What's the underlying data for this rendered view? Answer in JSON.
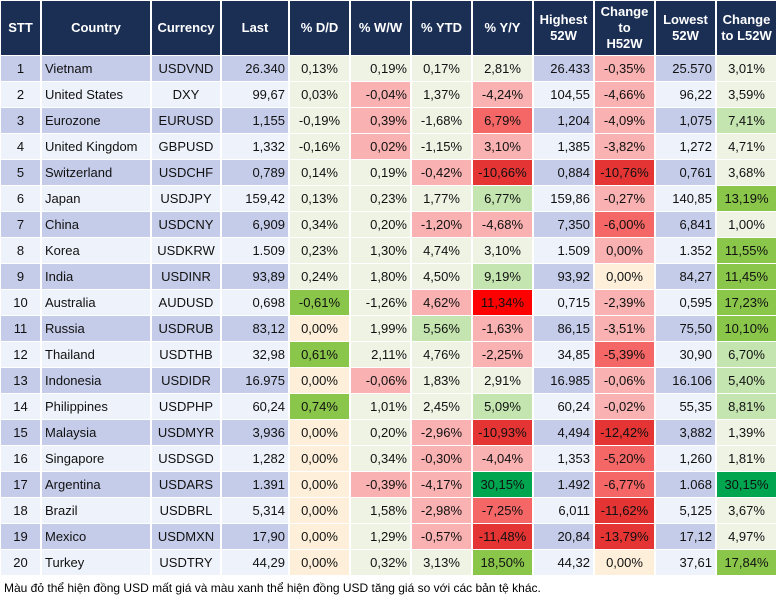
{
  "headers": [
    "STT",
    "Country",
    "Currency",
    "Last",
    "% D/D",
    "% W/W",
    "% YTD",
    "% Y/Y",
    "Highest 52W",
    "Change to H52W",
    "Lowest 52W",
    "Change to L52W"
  ],
  "palette": {
    "odd": "#c5cce9",
    "even": "#eef2fa",
    "pct": "#eef3e4",
    "lr": "#f9b1b1",
    "mr": "#f56666",
    "dr": "#e53434",
    "r": "#ff0000",
    "lg": "#c5e5b0",
    "g": "#8ac64a",
    "dg": "#00a550",
    "y": "#fdefd9",
    "header": "#1b2f55"
  },
  "rows": [
    {
      "stt": "1",
      "country": "Vietnam",
      "currency": "USDVND",
      "last": "26.340",
      "dd": "0,13%",
      "ww": "0,19%",
      "ytd": "0,17%",
      "yy": "2,81%",
      "h52": "26.433",
      "ch52": "-0,35%",
      "l52": "25.570",
      "cl52": "3,01%",
      "colors": [
        "",
        "",
        "",
        "",
        "lr",
        ""
      ]
    },
    {
      "stt": "2",
      "country": "United States",
      "currency": "DXY",
      "last": "99,67",
      "dd": "0,03%",
      "ww": "-0,04%",
      "ytd": "1,37%",
      "yy": "-4,24%",
      "h52": "104,55",
      "ch52": "-4,66%",
      "l52": "96,22",
      "cl52": "3,59%",
      "colors": [
        "",
        "lr",
        "",
        "lr",
        "lr",
        ""
      ]
    },
    {
      "stt": "3",
      "country": "Eurozone",
      "currency": "EURUSD",
      "last": "1,155",
      "dd": "-0,19%",
      "ww": "0,39%",
      "ytd": "-1,68%",
      "yy": "6,79%",
      "h52": "1,204",
      "ch52": "-4,09%",
      "l52": "1,075",
      "cl52": "7,41%",
      "colors": [
        "",
        "lr",
        "",
        "mr",
        "lr",
        "lg"
      ]
    },
    {
      "stt": "4",
      "country": "United Kingdom",
      "currency": "GBPUSD",
      "last": "1,332",
      "dd": "-0,16%",
      "ww": "0,02%",
      "ytd": "-1,15%",
      "yy": "3,10%",
      "h52": "1,385",
      "ch52": "-3,82%",
      "l52": "1,272",
      "cl52": "4,71%",
      "colors": [
        "",
        "lr",
        "",
        "lr",
        "lr",
        ""
      ]
    },
    {
      "stt": "5",
      "country": "Switzerland",
      "currency": "USDCHF",
      "last": "0,789",
      "dd": "0,14%",
      "ww": "0,19%",
      "ytd": "-0,42%",
      "yy": "-10,66%",
      "h52": "0,884",
      "ch52": "-10,76%",
      "l52": "0,761",
      "cl52": "3,68%",
      "colors": [
        "",
        "",
        "lr",
        "dr",
        "dr",
        ""
      ]
    },
    {
      "stt": "6",
      "country": "Japan",
      "currency": "USDJPY",
      "last": "159,42",
      "dd": "0,13%",
      "ww": "0,23%",
      "ytd": "1,77%",
      "yy": "6,77%",
      "h52": "159,86",
      "ch52": "-0,27%",
      "l52": "140,85",
      "cl52": "13,19%",
      "colors": [
        "",
        "",
        "",
        "lg",
        "lr",
        "g"
      ]
    },
    {
      "stt": "7",
      "country": "China",
      "currency": "USDCNY",
      "last": "6,909",
      "dd": "0,34%",
      "ww": "0,20%",
      "ytd": "-1,20%",
      "yy": "-4,68%",
      "h52": "7,350",
      "ch52": "-6,00%",
      "l52": "6,841",
      "cl52": "1,00%",
      "colors": [
        "",
        "",
        "lr",
        "lr",
        "mr",
        ""
      ]
    },
    {
      "stt": "8",
      "country": "Korea",
      "currency": "USDKRW",
      "last": "1.509",
      "dd": "0,23%",
      "ww": "1,30%",
      "ytd": "4,74%",
      "yy": "3,10%",
      "h52": "1.509",
      "ch52": "0,00%",
      "l52": "1.352",
      "cl52": "11,55%",
      "colors": [
        "",
        "",
        "",
        "",
        "lr",
        "g"
      ]
    },
    {
      "stt": "9",
      "country": "India",
      "currency": "USDINR",
      "last": "93,89",
      "dd": "0,24%",
      "ww": "1,80%",
      "ytd": "4,50%",
      "yy": "9,19%",
      "h52": "93,92",
      "ch52": "0,00%",
      "l52": "84,27",
      "cl52": "11,45%",
      "colors": [
        "",
        "",
        "",
        "lg",
        "y",
        "g"
      ]
    },
    {
      "stt": "10",
      "country": "Australia",
      "currency": "AUDUSD",
      "last": "0,698",
      "dd": "-0,61%",
      "ww": "-1,26%",
      "ytd": "4,62%",
      "yy": "11,34%",
      "h52": "0,715",
      "ch52": "-2,39%",
      "l52": "0,595",
      "cl52": "17,23%",
      "colors": [
        "g",
        "",
        "lr",
        "r",
        "lr",
        "g"
      ]
    },
    {
      "stt": "11",
      "country": "Russia",
      "currency": "USDRUB",
      "last": "83,12",
      "dd": "0,00%",
      "ww": "1,99%",
      "ytd": "5,56%",
      "yy": "-1,63%",
      "h52": "86,15",
      "ch52": "-3,51%",
      "l52": "75,50",
      "cl52": "10,10%",
      "colors": [
        "y",
        "",
        "lg",
        "lr",
        "lr",
        "g"
      ]
    },
    {
      "stt": "12",
      "country": "Thailand",
      "currency": "USDTHB",
      "last": "32,98",
      "dd": "0,61%",
      "ww": "2,11%",
      "ytd": "4,76%",
      "yy": "-2,25%",
      "h52": "34,85",
      "ch52": "-5,39%",
      "l52": "30,90",
      "cl52": "6,70%",
      "colors": [
        "g",
        "",
        "",
        "lr",
        "mr",
        "lg"
      ]
    },
    {
      "stt": "13",
      "country": "Indonesia",
      "currency": "USDIDR",
      "last": "16.975",
      "dd": "0,00%",
      "ww": "-0,06%",
      "ytd": "1,83%",
      "yy": "2,91%",
      "h52": "16.985",
      "ch52": "-0,06%",
      "l52": "16.106",
      "cl52": "5,40%",
      "colors": [
        "y",
        "lr",
        "",
        "",
        "lr",
        "lg"
      ]
    },
    {
      "stt": "14",
      "country": "Philippines",
      "currency": "USDPHP",
      "last": "60,24",
      "dd": "0,74%",
      "ww": "1,01%",
      "ytd": "2,45%",
      "yy": "5,09%",
      "h52": "60,24",
      "ch52": "-0,02%",
      "l52": "55,35",
      "cl52": "8,81%",
      "colors": [
        "g",
        "",
        "",
        "lg",
        "lr",
        "lg"
      ]
    },
    {
      "stt": "15",
      "country": "Malaysia",
      "currency": "USDMYR",
      "last": "3,936",
      "dd": "0,00%",
      "ww": "0,20%",
      "ytd": "-2,96%",
      "yy": "-10,93%",
      "h52": "4,494",
      "ch52": "-12,42%",
      "l52": "3,882",
      "cl52": "1,39%",
      "colors": [
        "y",
        "",
        "lr",
        "dr",
        "dr",
        ""
      ]
    },
    {
      "stt": "16",
      "country": "Singapore",
      "currency": "USDSGD",
      "last": "1,282",
      "dd": "0,00%",
      "ww": "0,34%",
      "ytd": "-0,30%",
      "yy": "-4,04%",
      "h52": "1,353",
      "ch52": "-5,20%",
      "l52": "1,260",
      "cl52": "1,81%",
      "colors": [
        "y",
        "",
        "lr",
        "lr",
        "mr",
        ""
      ]
    },
    {
      "stt": "17",
      "country": "Argentina",
      "currency": "USDARS",
      "last": "1.391",
      "dd": "0,00%",
      "ww": "-0,39%",
      "ytd": "-4,17%",
      "yy": "30,15%",
      "h52": "1.492",
      "ch52": "-6,77%",
      "l52": "1.068",
      "cl52": "30,15%",
      "colors": [
        "y",
        "lr",
        "lr",
        "dg",
        "mr",
        "dg"
      ]
    },
    {
      "stt": "18",
      "country": "Brazil",
      "currency": "USDBRL",
      "last": "5,314",
      "dd": "0,00%",
      "ww": "1,58%",
      "ytd": "-2,98%",
      "yy": "-7,25%",
      "h52": "6,011",
      "ch52": "-11,62%",
      "l52": "5,125",
      "cl52": "3,67%",
      "colors": [
        "y",
        "",
        "lr",
        "mr",
        "dr",
        ""
      ]
    },
    {
      "stt": "19",
      "country": "Mexico",
      "currency": "USDMXN",
      "last": "17,90",
      "dd": "0,00%",
      "ww": "1,29%",
      "ytd": "-0,57%",
      "yy": "-11,48%",
      "h52": "20,84",
      "ch52": "-13,79%",
      "l52": "17,12",
      "cl52": "4,97%",
      "colors": [
        "y",
        "",
        "lr",
        "dr",
        "dr",
        ""
      ]
    },
    {
      "stt": "20",
      "country": "Turkey",
      "currency": "USDTRY",
      "last": "44,29",
      "dd": "0,00%",
      "ww": "0,32%",
      "ytd": "3,13%",
      "yy": "18,50%",
      "h52": "44,32",
      "ch52": "0,00%",
      "l52": "37,61",
      "cl52": "17,84%",
      "colors": [
        "y",
        "",
        "",
        "g",
        "y",
        "g"
      ]
    }
  ],
  "footnote": "Màu đỏ thể hiện đồng USD mất giá và màu xanh thể hiện đồng USD tăng giá so với các bản tệ khác."
}
